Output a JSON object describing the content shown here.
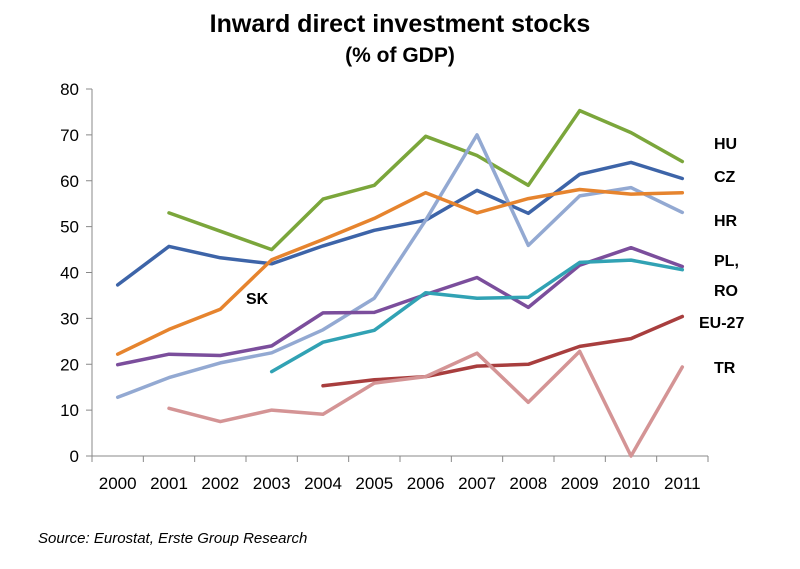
{
  "chart_data": {
    "type": "line",
    "title": "Inward direct investment stocks",
    "subtitle": "(% of GDP)",
    "xlabel": "",
    "ylabel": "",
    "x": [
      "2000",
      "2001",
      "2002",
      "2003",
      "2004",
      "2005",
      "2006",
      "2007",
      "2008",
      "2009",
      "2010",
      "2011"
    ],
    "ylim": [
      0,
      80
    ],
    "yticks": [
      "0",
      "10",
      "20",
      "30",
      "40",
      "50",
      "60",
      "70",
      "80"
    ],
    "grid": false,
    "series": [
      {
        "name": "HU",
        "color": "#7BA63B",
        "values": [
          null,
          53,
          49,
          45,
          56,
          59,
          69.7,
          65.5,
          59,
          75.3,
          70.5,
          64.2
        ]
      },
      {
        "name": "CZ",
        "color": "#3D64A8",
        "values": [
          37.3,
          45.7,
          43.2,
          41.9,
          45.8,
          49.2,
          51.4,
          57.9,
          52.9,
          61.4,
          64,
          60.5
        ]
      },
      {
        "name": "HR",
        "color": "#93A9D2",
        "values": [
          12.8,
          17.1,
          20.3,
          22.5,
          27.5,
          34.4,
          51.4,
          70,
          45.9,
          56.7,
          58.5,
          53.1
        ]
      },
      {
        "name": "SK",
        "color": "#E6842E",
        "values": [
          22.2,
          27.6,
          32,
          42.8,
          47.2,
          51.8,
          57.4,
          53,
          56.1,
          58.1,
          57.1,
          57.4
        ]
      },
      {
        "name": "PL,",
        "color": "#7B4E9C",
        "values": [
          19.9,
          22.2,
          21.9,
          24,
          31.2,
          31.3,
          35.2,
          38.9,
          32.4,
          41.6,
          45.4,
          41.3
        ]
      },
      {
        "name": "RO",
        "color": "#31A2B4",
        "values": [
          null,
          null,
          null,
          18.4,
          24.8,
          27.4,
          35.6,
          34.4,
          34.6,
          42.2,
          42.7,
          40.6
        ]
      },
      {
        "name": "EU-27",
        "color": "#A83E3E",
        "values": [
          null,
          null,
          null,
          null,
          15.3,
          16.6,
          17.3,
          19.6,
          20,
          23.9,
          25.6,
          30.4
        ]
      },
      {
        "name": "TR",
        "color": "#D49495",
        "values": [
          null,
          10.4,
          7.5,
          10,
          9.1,
          15.9,
          17.3,
          22.4,
          11.7,
          22.8,
          0,
          19.4
        ]
      }
    ]
  },
  "source": "Source: Eurostat, Erste Group Research"
}
